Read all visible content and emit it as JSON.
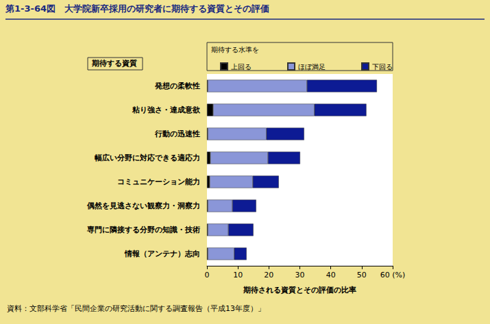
{
  "chart_data": {
    "type": "bar",
    "title": "第1-3-64図　大学院新卒採用の研究者に期待する資質とその評価",
    "ylabel": "期待する資質",
    "xlabel": "期待される資質とその評価の比率",
    "legend_title": "期待する水準を",
    "source": "資料：文部科学省「民間企業の研究活動に関する調査報告（平成13年度）」",
    "categories": [
      "発想の柔軟性",
      "粘り強さ・達成意欲",
      "行動の迅速性",
      "幅広い分野に対応できる適応力",
      "コミュニケーション能力",
      "偶然を見逃さない観察力・洞察力",
      "専門に隣接する分野の知識・技術",
      "情報（アンテナ）志向"
    ],
    "series": [
      {
        "name": "上回る",
        "color": "#000000",
        "values": [
          0.3,
          2.0,
          0.3,
          1.1,
          0.9,
          0.3,
          0.3,
          0.3
        ]
      },
      {
        "name": "ほぼ満足",
        "color": "#8a96d8",
        "values": [
          32.0,
          32.7,
          18.9,
          18.6,
          13.9,
          7.9,
          6.6,
          8.5
        ]
      },
      {
        "name": "下回る",
        "color": "#0d1b94",
        "values": [
          22.6,
          16.8,
          12.2,
          10.4,
          8.4,
          7.7,
          8.1,
          4.0
        ]
      }
    ],
    "xlim": [
      0,
      60
    ],
    "xticks": [
      0,
      10,
      20,
      30,
      40,
      50,
      {
        "value": 60,
        "label": "60 (%)"
      }
    ],
    "orientation": "horizontal",
    "stacked": true,
    "grid": false,
    "legend": "top"
  }
}
